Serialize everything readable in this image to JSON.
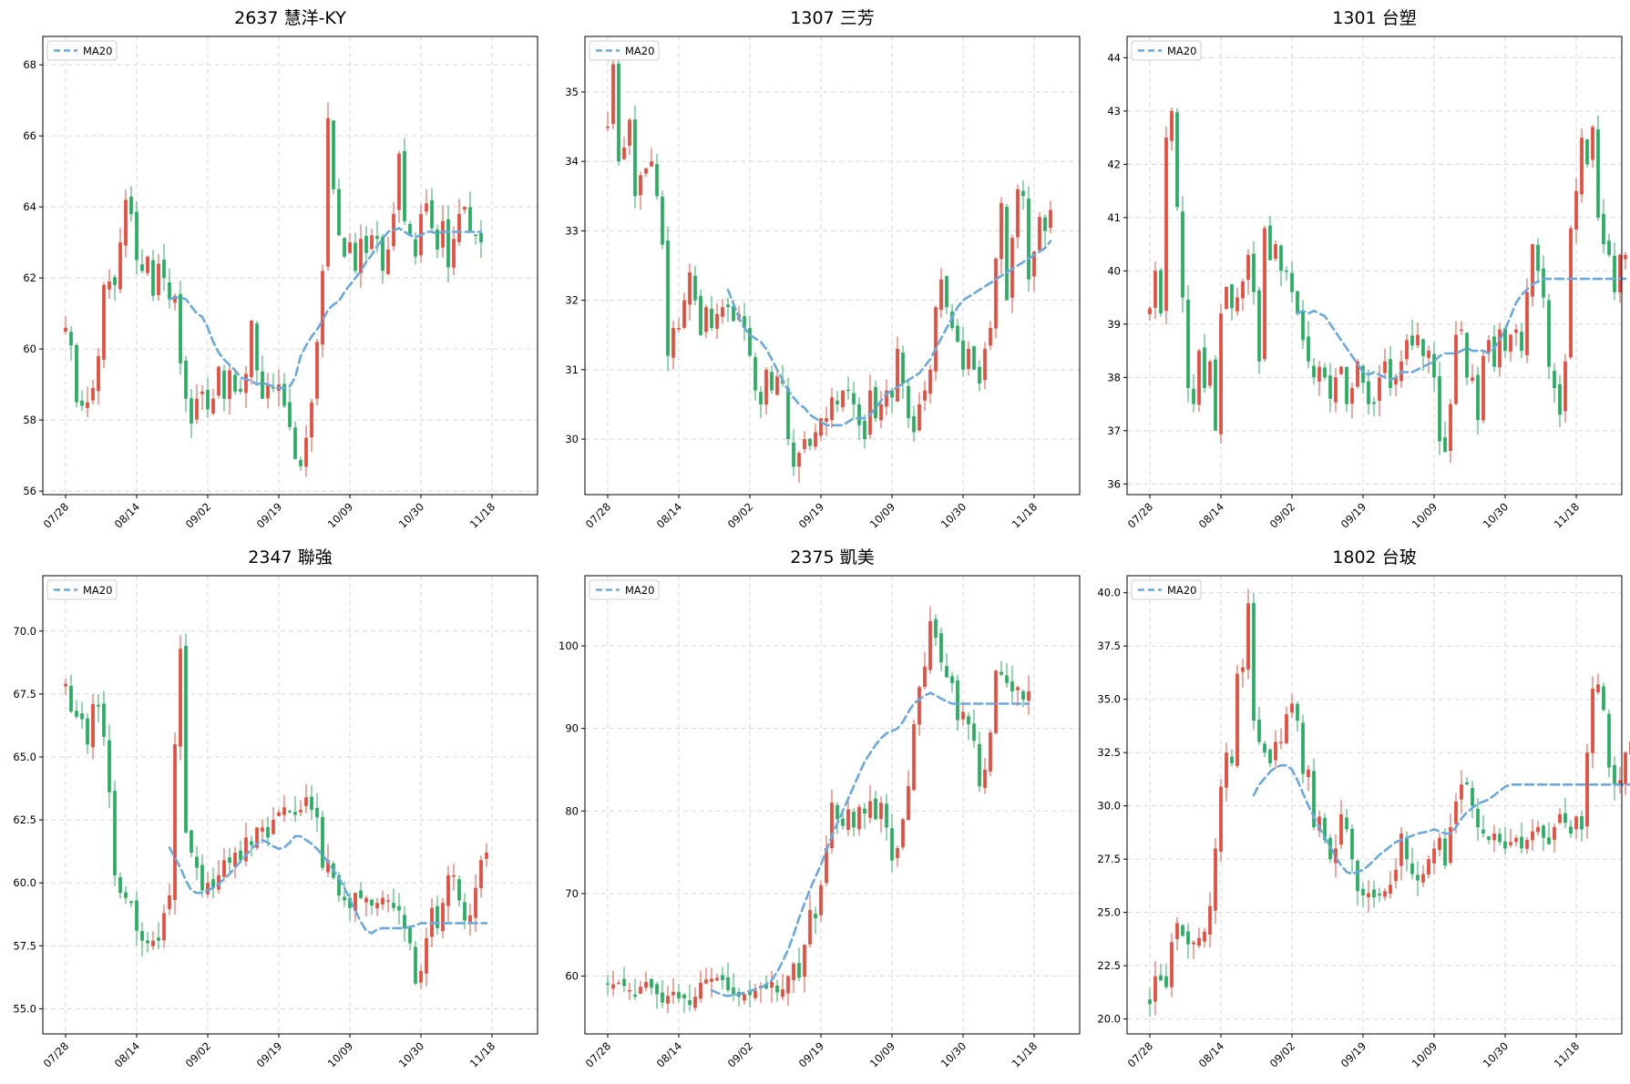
{
  "chart_data": [
    {
      "type": "candlestick",
      "title": "2637 慧洋-KY",
      "legend": [
        "MA20"
      ],
      "legend_position": "top-left",
      "grid": true,
      "x_ticks": [
        "07/28",
        "08/14",
        "09/02",
        "09/19",
        "10/09",
        "10/30",
        "11/18"
      ],
      "y_ticks": [
        56,
        58,
        60,
        62,
        64,
        66,
        68
      ],
      "ylim": [
        55.9,
        68.8
      ],
      "closes": [
        60.6,
        60.1,
        58.5,
        58.4,
        58.5,
        58.9,
        59.8,
        61.8,
        61.9,
        61.8,
        63.0,
        64.2,
        63.8,
        62.5,
        62.2,
        62.6,
        61.5,
        62.4,
        62.0,
        61.4,
        61.5,
        59.6,
        58.6,
        57.9,
        58.6,
        58.8,
        58.3,
        58.6,
        59.5,
        58.6,
        59.4,
        58.8,
        58.8,
        59.3,
        60.8,
        59.4,
        58.6,
        59.0,
        58.9,
        59.0,
        58.4,
        57.8,
        56.9,
        56.7,
        57.5,
        58.5,
        60.2,
        62.2,
        66.5,
        64.5,
        63.2,
        62.6,
        63.0,
        62.2,
        63.1,
        62.7,
        63.2,
        63.1,
        62.2,
        62.8,
        63.8,
        65.5,
        63.6,
        63.2,
        62.6,
        63.8,
        64.1,
        63.4,
        62.8,
        63.6,
        62.3,
        63.1,
        63.8,
        64.0,
        63.3,
        63.2,
        63.0
      ],
      "ma20_start_index": 19,
      "ma20": [
        61.4,
        61.45,
        61.45,
        61.4,
        61.2,
        61.0,
        60.9,
        60.6,
        60.2,
        59.9,
        59.7,
        59.55,
        59.4,
        59.2,
        59.15,
        59.1,
        59.0,
        59.05,
        59.0,
        58.95,
        58.9,
        58.9,
        58.95,
        59.2,
        59.8,
        60.1,
        60.35,
        60.55,
        60.8,
        61.1,
        61.25,
        61.35,
        61.6,
        61.8,
        62.0,
        62.2,
        62.45,
        62.65,
        62.9,
        63.1,
        63.3,
        63.35,
        63.4,
        63.3,
        63.2,
        63.15,
        63.2,
        63.3,
        63.3,
        63.25,
        63.3,
        63.3,
        63.3,
        63.3,
        63.3,
        63.3,
        63.3,
        63.3
      ]
    },
    {
      "type": "candlestick",
      "title": "1307 三芳",
      "legend": [
        "MA20"
      ],
      "legend_position": "top-left",
      "grid": true,
      "x_ticks": [
        "07/28",
        "08/14",
        "09/02",
        "09/19",
        "10/09",
        "10/30",
        "11/18"
      ],
      "y_ticks": [
        30,
        31,
        32,
        33,
        34,
        35
      ],
      "ylim": [
        29.2,
        35.8
      ],
      "closes": [
        34.5,
        35.4,
        34.0,
        34.2,
        34.6,
        33.5,
        33.8,
        33.9,
        34.0,
        33.5,
        32.8,
        31.2,
        31.6,
        31.6,
        32.0,
        32.4,
        32.0,
        31.5,
        31.9,
        31.6,
        31.8,
        31.9,
        31.9,
        31.7,
        31.8,
        31.6,
        31.2,
        30.7,
        30.5,
        31.0,
        30.7,
        30.9,
        30.8,
        30.0,
        29.6,
        29.8,
        30.0,
        29.9,
        30.1,
        30.3,
        30.3,
        30.6,
        30.5,
        30.7,
        30.7,
        30.5,
        30.2,
        30.0,
        30.7,
        30.3,
        30.5,
        30.7,
        30.6,
        31.3,
        30.8,
        30.3,
        30.1,
        30.5,
        30.7,
        31.0,
        31.9,
        32.3,
        31.9,
        31.6,
        31.4,
        31.0,
        31.3,
        31.0,
        30.8,
        31.3,
        31.6,
        32.6,
        33.4,
        32.0,
        32.9,
        33.6,
        33.5,
        32.3,
        32.7,
        33.2,
        33.0,
        33.3
      ],
      "ma20_start_index": 22,
      "ma20": [
        32.15,
        31.95,
        31.75,
        31.6,
        31.5,
        31.45,
        31.4,
        31.3,
        31.15,
        31.0,
        30.85,
        30.7,
        30.6,
        30.5,
        30.45,
        30.35,
        30.3,
        30.25,
        30.2,
        30.2,
        30.2,
        30.2,
        30.25,
        30.3,
        30.3,
        30.3,
        30.35,
        30.45,
        30.55,
        30.65,
        30.7,
        30.75,
        30.8,
        30.85,
        30.9,
        30.95,
        31.05,
        31.15,
        31.3,
        31.45,
        31.6,
        31.75,
        31.9,
        32.0,
        32.05,
        32.1,
        32.15,
        32.2,
        32.25,
        32.3,
        32.35,
        32.4,
        32.45,
        32.5,
        32.55,
        32.6,
        32.65,
        32.7,
        32.75,
        32.85
      ]
    },
    {
      "type": "candlestick",
      "title": "1301 台塑",
      "legend": [
        "MA20"
      ],
      "legend_position": "top-left",
      "grid": true,
      "x_ticks": [
        "07/28",
        "08/14",
        "09/02",
        "09/19",
        "10/09",
        "10/30",
        "11/18"
      ],
      "y_ticks": [
        36,
        37,
        38,
        39,
        40,
        41,
        42,
        43,
        44
      ],
      "ylim": [
        35.8,
        44.4
      ],
      "closes": [
        39.3,
        40.0,
        39.2,
        42.5,
        43.0,
        41.2,
        39.5,
        37.8,
        37.5,
        38.5,
        37.8,
        38.3,
        37.0,
        39.2,
        39.7,
        39.3,
        39.5,
        39.8,
        40.3,
        39.6,
        38.3,
        40.8,
        40.2,
        40.5,
        40.0,
        40.0,
        39.6,
        39.2,
        38.7,
        38.3,
        38.0,
        38.2,
        38.0,
        37.6,
        38.0,
        38.2,
        37.5,
        37.8,
        38.3,
        37.9,
        37.5,
        37.5,
        38.0,
        38.3,
        37.8,
        38.0,
        38.3,
        38.7,
        38.6,
        38.8,
        38.4,
        38.5,
        38.0,
        36.8,
        36.6,
        37.5,
        38.8,
        38.9,
        38.0,
        38.0,
        37.2,
        38.4,
        38.7,
        38.2,
        38.9,
        38.5,
        38.8,
        38.9,
        38.5,
        39.6,
        40.5,
        40.0,
        39.5,
        38.2,
        37.8,
        37.3,
        38.3,
        40.8,
        41.5,
        42.5,
        42.0,
        42.7,
        41.0,
        40.5,
        40.3,
        39.6,
        40.3,
        40.3
      ],
      "ma20_start_index": 27,
      "ma20": [
        39.2,
        39.25,
        39.2,
        39.25,
        39.2,
        39.15,
        39.0,
        38.85,
        38.7,
        38.55,
        38.4,
        38.25,
        38.1,
        38.05,
        38.1,
        38.05,
        38.0,
        37.95,
        38.0,
        38.1,
        38.1,
        38.1,
        38.15,
        38.2,
        38.25,
        38.3,
        38.4,
        38.45,
        38.45,
        38.45,
        38.5,
        38.55,
        38.5,
        38.5,
        38.5,
        38.45,
        38.55,
        38.7,
        38.9,
        39.15,
        39.4,
        39.55,
        39.65,
        39.75,
        39.8,
        39.85,
        39.85,
        39.85,
        39.85,
        39.85,
        39.85,
        39.85,
        39.85,
        39.85,
        39.85,
        39.85,
        39.85,
        39.85,
        39.85,
        39.85,
        39.85
      ]
    },
    {
      "type": "candlestick",
      "title": "2347 聯強",
      "legend": [
        "MA20"
      ],
      "legend_position": "top-left",
      "grid": true,
      "x_ticks": [
        "07/28",
        "08/14",
        "09/02",
        "09/19",
        "10/09",
        "10/30",
        "11/18"
      ],
      "y_ticks": [
        55.0,
        57.5,
        60.0,
        62.5,
        65.0,
        67.5,
        70.0
      ],
      "ylim": [
        54.0,
        72.2
      ],
      "closes": [
        67.9,
        66.8,
        66.6,
        66.5,
        65.5,
        67.1,
        67.0,
        65.8,
        63.6,
        60.3,
        59.6,
        59.4,
        59.2,
        58.1,
        57.7,
        57.6,
        57.7,
        57.7,
        58.8,
        59.5,
        65.5,
        69.3,
        62.0,
        61.2,
        60.6,
        59.7,
        60.0,
        59.8,
        60.3,
        60.9,
        60.8,
        61.2,
        60.9,
        61.8,
        61.5,
        62.2,
        62.2,
        61.8,
        62.5,
        62.8,
        63.0,
        62.8,
        62.7,
        62.9,
        63.4,
        62.9,
        62.6,
        60.6,
        60.9,
        60.2,
        59.5,
        59.3,
        59.0,
        59.6,
        59.4,
        59.4,
        59.1,
        59.2,
        59.4,
        59.3,
        59.0,
        58.9,
        58.2,
        57.6,
        56.0,
        56.5,
        57.8,
        59.0,
        58.2,
        59.2,
        60.3,
        60.3,
        59.3,
        58.5,
        58.7,
        59.8,
        60.9,
        61.2
      ],
      "ma20_start_index": 19,
      "ma20": [
        61.4,
        61.0,
        60.6,
        60.1,
        59.7,
        59.6,
        59.6,
        59.7,
        59.8,
        59.95,
        60.15,
        60.35,
        60.6,
        60.85,
        61.1,
        61.35,
        61.55,
        61.7,
        61.6,
        61.45,
        61.35,
        61.4,
        61.6,
        61.85,
        61.85,
        61.7,
        61.55,
        61.35,
        61.1,
        60.85,
        60.5,
        60.2,
        59.8,
        59.35,
        58.9,
        58.45,
        58.1,
        58.0,
        58.15,
        58.2,
        58.2,
        58.2,
        58.2,
        58.2,
        58.25,
        58.3,
        58.4,
        58.4,
        58.4,
        58.4,
        58.4,
        58.4,
        58.4,
        58.4,
        58.4,
        58.4,
        58.4,
        58.4,
        58.4
      ]
    },
    {
      "type": "candlestick",
      "title": "2375 凱美",
      "legend": [
        "MA20"
      ],
      "legend_position": "top-left",
      "grid": true,
      "x_ticks": [
        "07/28",
        "08/14",
        "09/02",
        "09/19",
        "10/09",
        "10/30",
        "11/18"
      ],
      "y_ticks": [
        60,
        70,
        80,
        90,
        100
      ],
      "ylim": [
        53.0,
        108.5
      ],
      "closes": [
        59.0,
        59.0,
        59.2,
        58.8,
        58.3,
        57.5,
        58.7,
        59.3,
        58.6,
        57.8,
        56.8,
        57.6,
        58.1,
        57.3,
        57.3,
        56.5,
        57.5,
        59.2,
        59.6,
        59.7,
        59.8,
        59.5,
        58.3,
        57.8,
        57.5,
        57.8,
        57.7,
        58.2,
        58.8,
        58.5,
        59.3,
        58.0,
        58.4,
        60.0,
        61.5,
        59.8,
        63.8,
        68.0,
        67.0,
        71.0,
        75.5,
        81.0,
        79.0,
        78.2,
        80.2,
        78.0,
        80.5,
        79.7,
        81.2,
        79.0,
        81.0,
        78.0,
        74.0,
        75.5,
        79.0,
        83.0,
        90.5,
        95.0,
        97.5,
        103.0,
        101.0,
        98.0,
        96.2,
        95.5,
        91.0,
        92.0,
        90.5,
        88.5,
        83.0,
        85.0,
        89.5,
        97.0,
        96.5,
        95.5,
        94.5,
        95.0,
        93.5,
        94.5
      ],
      "ma20_start_index": 19,
      "ma20": [
        58.3,
        58.0,
        57.7,
        57.6,
        57.7,
        57.8,
        58.0,
        58.2,
        58.4,
        58.6,
        59.0,
        59.5,
        60.5,
        61.8,
        63.2,
        65.0,
        67.0,
        68.8,
        70.5,
        72.0,
        73.5,
        75.2,
        77.0,
        78.5,
        80.0,
        81.5,
        83.0,
        84.5,
        86.0,
        87.0,
        88.0,
        88.8,
        89.4,
        89.7,
        90.0,
        90.8,
        92.0,
        93.0,
        93.5,
        94.0,
        94.3,
        94.0,
        93.6,
        93.3,
        93.0,
        93.0,
        93.0,
        93.0,
        93.0,
        93.0,
        93.0,
        93.0,
        93.0,
        93.0,
        93.0,
        93.0,
        93.0,
        93.0,
        93.0
      ]
    },
    {
      "type": "candlestick",
      "title": "1802 台玻",
      "legend": [
        "MA20"
      ],
      "legend_position": "top-left",
      "grid": true,
      "x_ticks": [
        "07/28",
        "08/14",
        "09/02",
        "09/19",
        "10/09",
        "10/30",
        "11/18"
      ],
      "y_ticks": [
        20.0,
        22.5,
        25.0,
        27.5,
        30.0,
        32.5,
        35.0,
        37.5,
        40.0
      ],
      "ylim": [
        19.3,
        40.8
      ],
      "closes": [
        20.7,
        22.0,
        21.8,
        21.5,
        23.6,
        24.5,
        23.9,
        23.5,
        23.6,
        23.8,
        24.1,
        25.3,
        28.0,
        30.9,
        32.5,
        32.0,
        36.2,
        36.5,
        39.5,
        34.0,
        33.0,
        32.5,
        32.0,
        33.0,
        33.0,
        34.3,
        34.8,
        34.0,
        31.5,
        31.7,
        29.0,
        29.5,
        28.4,
        27.5,
        28.0,
        29.6,
        28.9,
        27.5,
        26.0,
        25.8,
        25.9,
        25.7,
        25.8,
        26.0,
        26.3,
        27.0,
        28.7,
        27.5,
        26.8,
        26.5,
        26.8,
        27.5,
        28.0,
        28.5,
        27.2,
        29.0,
        30.2,
        31.0,
        31.0,
        30.0,
        29.0,
        28.7,
        28.4,
        28.7,
        28.3,
        28.0,
        28.3,
        28.5,
        28.0,
        28.4,
        28.8,
        29.0,
        28.5,
        28.2,
        29.0,
        29.6,
        29.2,
        28.7,
        29.5,
        28.9,
        32.5,
        35.5,
        35.7,
        34.5,
        31.8,
        31.0,
        31.2,
        32.5,
        33.0
      ],
      "ma20_start_index": 19,
      "ma20": [
        30.5,
        31.0,
        31.3,
        31.6,
        31.8,
        31.9,
        31.9,
        31.7,
        31.2,
        30.6,
        30.0,
        29.5,
        29.0,
        28.5,
        28.1,
        27.6,
        27.2,
        26.9,
        26.8,
        26.9,
        27.0,
        27.2,
        27.45,
        27.7,
        27.9,
        28.1,
        28.3,
        28.4,
        28.5,
        28.6,
        28.7,
        28.75,
        28.8,
        28.9,
        28.8,
        28.7,
        28.7,
        29.0,
        29.4,
        29.7,
        29.9,
        30.1,
        30.2,
        30.3,
        30.5,
        30.7,
        30.9,
        31.0,
        31.0,
        31.0,
        31.0,
        31.0,
        31.0,
        31.0,
        31.0,
        31.0,
        31.0,
        31.0,
        31.0,
        31.0,
        31.0,
        31.0,
        31.0,
        31.0,
        31.0,
        31.0,
        31.0,
        31.0,
        31.0,
        31.0
      ]
    }
  ],
  "colors": {
    "up": "#e74c3c",
    "down": "#27ae60",
    "ma20": "#6aa9e0"
  }
}
